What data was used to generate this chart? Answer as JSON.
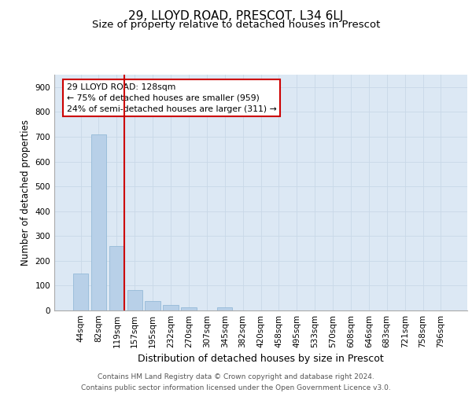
{
  "title1": "29, LLOYD ROAD, PRESCOT, L34 6LJ",
  "title2": "Size of property relative to detached houses in Prescot",
  "xlabel": "Distribution of detached houses by size in Prescot",
  "ylabel": "Number of detached properties",
  "categories": [
    "44sqm",
    "82sqm",
    "119sqm",
    "157sqm",
    "195sqm",
    "232sqm",
    "270sqm",
    "307sqm",
    "345sqm",
    "382sqm",
    "420sqm",
    "458sqm",
    "495sqm",
    "533sqm",
    "570sqm",
    "608sqm",
    "646sqm",
    "683sqm",
    "721sqm",
    "758sqm",
    "796sqm"
  ],
  "values": [
    148,
    710,
    260,
    83,
    38,
    22,
    12,
    0,
    12,
    0,
    0,
    0,
    0,
    0,
    0,
    0,
    0,
    0,
    0,
    0,
    0
  ],
  "bar_color": "#b8d0e8",
  "bar_edge_color": "#8ab4d4",
  "vline_color": "#cc0000",
  "annotation_text": "29 LLOYD ROAD: 128sqm\n← 75% of detached houses are smaller (959)\n24% of semi-detached houses are larger (311) →",
  "annotation_box_color": "#cc0000",
  "ylim": [
    0,
    950
  ],
  "yticks": [
    0,
    100,
    200,
    300,
    400,
    500,
    600,
    700,
    800,
    900
  ],
  "grid_color": "#c8d8e8",
  "background_color": "#dce8f4",
  "footer_text": "Contains HM Land Registry data © Crown copyright and database right 2024.\nContains public sector information licensed under the Open Government Licence v3.0.",
  "title1_fontsize": 11,
  "title2_fontsize": 9.5,
  "xlabel_fontsize": 9,
  "ylabel_fontsize": 8.5,
  "tick_fontsize": 7.5,
  "footer_fontsize": 6.5
}
